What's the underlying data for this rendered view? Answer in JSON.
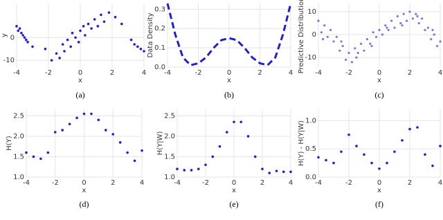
{
  "chart_data": [
    {
      "type": "scatter",
      "caption": "(a)",
      "xlabel": "x",
      "ylabel": "y",
      "color": "#1f1fd6",
      "xlim": [
        -4,
        4
      ],
      "xticks": [
        -4,
        -2,
        0,
        2,
        4
      ],
      "ylim": [
        -13,
        15
      ],
      "yticks": [
        -10,
        0
      ],
      "x": [
        -4,
        -3.9,
        -3.8,
        -3.7,
        -3.6,
        -3.5,
        -3.4,
        -3.3,
        -3.0,
        -2.2,
        -1.8,
        -1.5,
        -1.3,
        -1.1,
        -1,
        -0.8,
        -0.6,
        -0.5,
        -0.3,
        -0.1,
        0,
        0.2,
        0.3,
        0.5,
        0.7,
        0.9,
        1.1,
        1.3,
        1.5,
        1.8,
        2.2,
        2.6,
        3.2,
        3.4,
        3.6,
        3.8,
        4
      ],
      "values": [
        5,
        3,
        4,
        2,
        1,
        0,
        -1,
        -2,
        -4,
        -5,
        -10,
        -7,
        -9,
        -3,
        -6,
        -1,
        -4,
        2,
        0,
        -2,
        3,
        5,
        1,
        6,
        4,
        8,
        5,
        10,
        7,
        11,
        9,
        6,
        -1,
        -3,
        -4,
        -5,
        -6
      ]
    },
    {
      "type": "line",
      "caption": "(b)",
      "xlabel": "x",
      "ylabel": "Data Density",
      "color": "#1f1fd6",
      "dashed": true,
      "xlim": [
        -4,
        4
      ],
      "xticks": [
        -4,
        -2,
        0,
        2,
        4
      ],
      "ylim": [
        0,
        0.33
      ],
      "yticks": [
        {
          "value": 0,
          "label": "0.0"
        },
        0.1,
        0.2,
        0.3
      ],
      "x": [
        -4,
        -3.5,
        -3,
        -2.5,
        -2,
        -1.5,
        -1,
        -0.5,
        0,
        0.5,
        1,
        1.5,
        2,
        2.5,
        3,
        3.5,
        4
      ],
      "values": [
        0.33,
        0.17,
        0.05,
        0.01,
        0.02,
        0.05,
        0.1,
        0.14,
        0.15,
        0.14,
        0.1,
        0.05,
        0.02,
        0.01,
        0.05,
        0.17,
        0.33
      ]
    },
    {
      "type": "scatter",
      "caption": "(c)",
      "xlabel": "x",
      "ylabel": "Predictive Distribution",
      "color": "#1f1fd6",
      "xlim": [
        -4,
        4
      ],
      "xticks": [
        -4,
        -2,
        0,
        2,
        4
      ],
      "ylim": [
        -14.2,
        13.6
      ],
      "yticks": [
        -10,
        0,
        10
      ],
      "x": [
        -4,
        -3.8,
        -3.6,
        -3.4,
        -3.2,
        -3,
        -2.8,
        -2.6,
        -2.4,
        -2.2,
        -2,
        -1.8,
        -1.6,
        -1.4,
        -1.2,
        -1,
        -0.8,
        -0.6,
        -0.4,
        -0.2,
        0,
        0.2,
        0.4,
        0.6,
        0.8,
        1,
        1.2,
        1.4,
        1.6,
        1.8,
        2,
        2.2,
        2.4,
        2.6,
        2.8,
        3,
        3.2,
        3.4,
        3.6,
        3.8,
        4,
        -3.7,
        -2.5,
        -1.5,
        -0.5,
        0.5,
        1.5,
        2.5,
        3.5
      ],
      "values": [
        6,
        1,
        4,
        -1,
        2,
        -3,
        -1,
        -7,
        -5,
        -11,
        -8,
        -12,
        -6,
        -8,
        -4,
        -7,
        -2,
        -4,
        1,
        -1,
        2,
        0,
        4,
        2,
        6,
        3,
        8,
        5,
        9,
        6,
        10,
        7,
        9,
        5,
        7,
        2,
        3,
        -2,
        0,
        -5,
        -3,
        -2,
        -3,
        -10,
        -5,
        3,
        4,
        8,
        2
      ]
    },
    {
      "type": "scatter",
      "caption": "(d)",
      "xlabel": "x",
      "ylabel": "H(Y)",
      "color": "#1f1fd6",
      "xlim": [
        -4,
        4
      ],
      "xticks": [
        -4,
        -2,
        0,
        2,
        4
      ],
      "ylim": [
        1.0,
        2.66
      ],
      "yticks": [
        {
          "value": 1,
          "label": "1.0"
        },
        1.5,
        {
          "value": 2,
          "label": "2.0"
        },
        2.5
      ],
      "x": [
        -4,
        -3.5,
        -3,
        -2.5,
        -2,
        -1.5,
        -1,
        -0.5,
        0,
        0.5,
        1,
        1.5,
        2,
        2.5,
        3,
        3.5,
        4
      ],
      "values": [
        1.6,
        1.5,
        1.45,
        1.6,
        2.1,
        2.15,
        2.3,
        2.45,
        2.55,
        2.55,
        2.4,
        2.15,
        2.05,
        1.85,
        1.6,
        1.4,
        1.65
      ]
    },
    {
      "type": "scatter",
      "caption": "(e)",
      "xlabel": "x",
      "ylabel": "H(Y|W)",
      "color": "#1f1fd6",
      "xlim": [
        -4,
        4
      ],
      "xticks": [
        -4,
        -2,
        0,
        2,
        4
      ],
      "ylim": [
        1.0,
        2.66
      ],
      "yticks": [
        {
          "value": 1,
          "label": "1.0"
        },
        1.5,
        {
          "value": 2,
          "label": "2.0"
        },
        2.5
      ],
      "x": [
        -4,
        -3.5,
        -3,
        -2.5,
        -2,
        -1.5,
        -1,
        -0.5,
        0,
        0.5,
        1,
        1.5,
        2,
        2.5,
        3,
        3.5,
        4
      ],
      "values": [
        1.2,
        1.17,
        1.17,
        1.2,
        1.3,
        1.5,
        1.75,
        2.1,
        2.35,
        2.35,
        2.0,
        1.5,
        1.2,
        1.1,
        1.15,
        1.13,
        1.13
      ]
    },
    {
      "type": "scatter",
      "caption": "(f)",
      "xlabel": "x",
      "ylabel": "H(Y) - H(Y|W)",
      "color": "#1f1fd6",
      "xlim": [
        -4,
        4
      ],
      "xticks": [
        -4,
        -2,
        0,
        2,
        4
      ],
      "ylim": [
        0,
        1.2
      ],
      "yticks": [
        {
          "value": 0,
          "label": "0.0"
        },
        0.5,
        {
          "value": 1,
          "label": "1.0"
        }
      ],
      "x": [
        -4,
        -3.5,
        -3,
        -2.5,
        -2,
        -1.5,
        -1,
        -0.5,
        0,
        0.5,
        1,
        1.5,
        2,
        2.5,
        3,
        3.5,
        4
      ],
      "values": [
        0.35,
        0.3,
        0.25,
        0.45,
        0.75,
        0.55,
        0.4,
        0.25,
        0.15,
        0.25,
        0.45,
        0.65,
        0.85,
        0.88,
        0.4,
        0.2,
        0.55
      ]
    }
  ]
}
